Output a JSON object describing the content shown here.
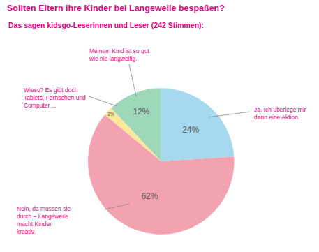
{
  "chart_data": {
    "type": "pie",
    "title": "Sollten Eltern ihre Kinder bei Langeweile bespaßen?",
    "subtitle": "Das sagen kidsgo-Leserinnen und Leser (242 Stimmen):",
    "categories": [
      "Ja. Ich überlege mir dann eine Aktion.",
      "Nein, da müssen sie durch – Langeweile macht Kinder kreativ.",
      "Wieso? Es gibt doch Tablets, Fernsehen und Computer ...",
      "Meinem Kind ist so gut wie nie langweilig."
    ],
    "values": [
      24,
      62,
      2,
      12
    ],
    "value_labels": [
      "24%",
      "62%",
      "2%",
      "12%"
    ],
    "colors": [
      "#a6d9ef",
      "#f2a2b0",
      "#fbe89a",
      "#9fd8b8"
    ],
    "data_labels": true
  }
}
